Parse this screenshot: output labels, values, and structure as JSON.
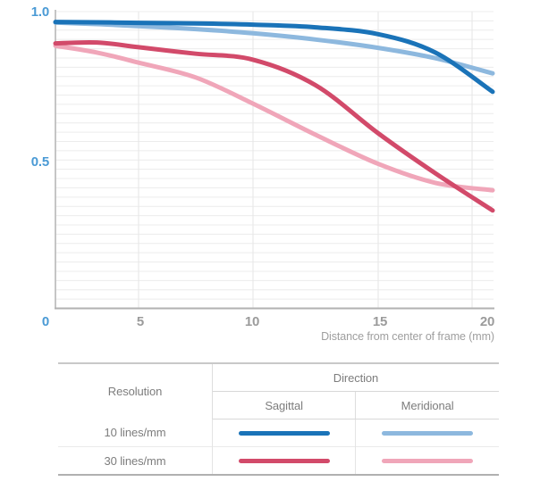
{
  "chart": {
    "y_ticks": [
      {
        "label": "1.0",
        "value": 1.0
      },
      {
        "label": "0.5",
        "value": 0.5
      },
      {
        "label": "0",
        "value": 0.0
      }
    ],
    "x_ticks": [
      {
        "label": "5",
        "mm": 5
      },
      {
        "label": "10",
        "mm": 10
      },
      {
        "label": "15",
        "mm": 15
      },
      {
        "label": "20",
        "mm": 20
      }
    ],
    "x_title": "Distance from center of frame (mm)"
  },
  "chart_data": {
    "type": "line",
    "title": "",
    "xlabel": "Distance from center of frame (mm)",
    "ylabel": "",
    "xlim": [
      0,
      20
    ],
    "ylim": [
      0,
      1.0
    ],
    "grid": "fine horizontal lines plus vertical lines at 5mm ticks",
    "legend_position": "table below chart",
    "x": [
      0,
      2.5,
      5,
      7.5,
      10,
      12.5,
      15,
      17.5,
      20
    ],
    "series": [
      {
        "name": "10 lines/mm Sagittal",
        "color": "#1a73b8",
        "values": [
          0.965,
          0.964,
          0.962,
          0.96,
          0.956,
          0.947,
          0.924,
          0.862,
          0.73
        ]
      },
      {
        "name": "10 lines/mm Meridional",
        "color": "#8db8de",
        "values": [
          0.963,
          0.958,
          0.951,
          0.941,
          0.927,
          0.906,
          0.878,
          0.843,
          0.792
        ]
      },
      {
        "name": "30 lines/mm Sagittal",
        "color": "#d24a6a",
        "values": [
          0.893,
          0.896,
          0.88,
          0.858,
          0.838,
          0.752,
          0.59,
          0.455,
          0.33
        ]
      },
      {
        "name": "30 lines/mm Meridional",
        "color": "#f0a6b9",
        "values": [
          0.885,
          0.862,
          0.828,
          0.778,
          0.69,
          0.585,
          0.487,
          0.423,
          0.398
        ]
      }
    ]
  },
  "legend_table": {
    "resolution_header": "Resolution",
    "direction_header": "Direction",
    "sagittal_header": "Sagittal",
    "meridional_header": "Meridional",
    "rows": [
      {
        "label": "10 lines/mm",
        "sagittal_color": "#1a73b8",
        "meridional_color": "#8db8de"
      },
      {
        "label": "30 lines/mm",
        "sagittal_color": "#d24a6a",
        "meridional_color": "#f0a6b9"
      }
    ]
  },
  "colors": {
    "tick_label_blue": "#4a9ad5",
    "tick_label_gray": "#9b9b9b",
    "grid_line": "#ececec",
    "grid_line_vertical": "#e6e6e6",
    "axis_left": "#c5c5c5",
    "axis_bottom": "#b2b2b2"
  }
}
